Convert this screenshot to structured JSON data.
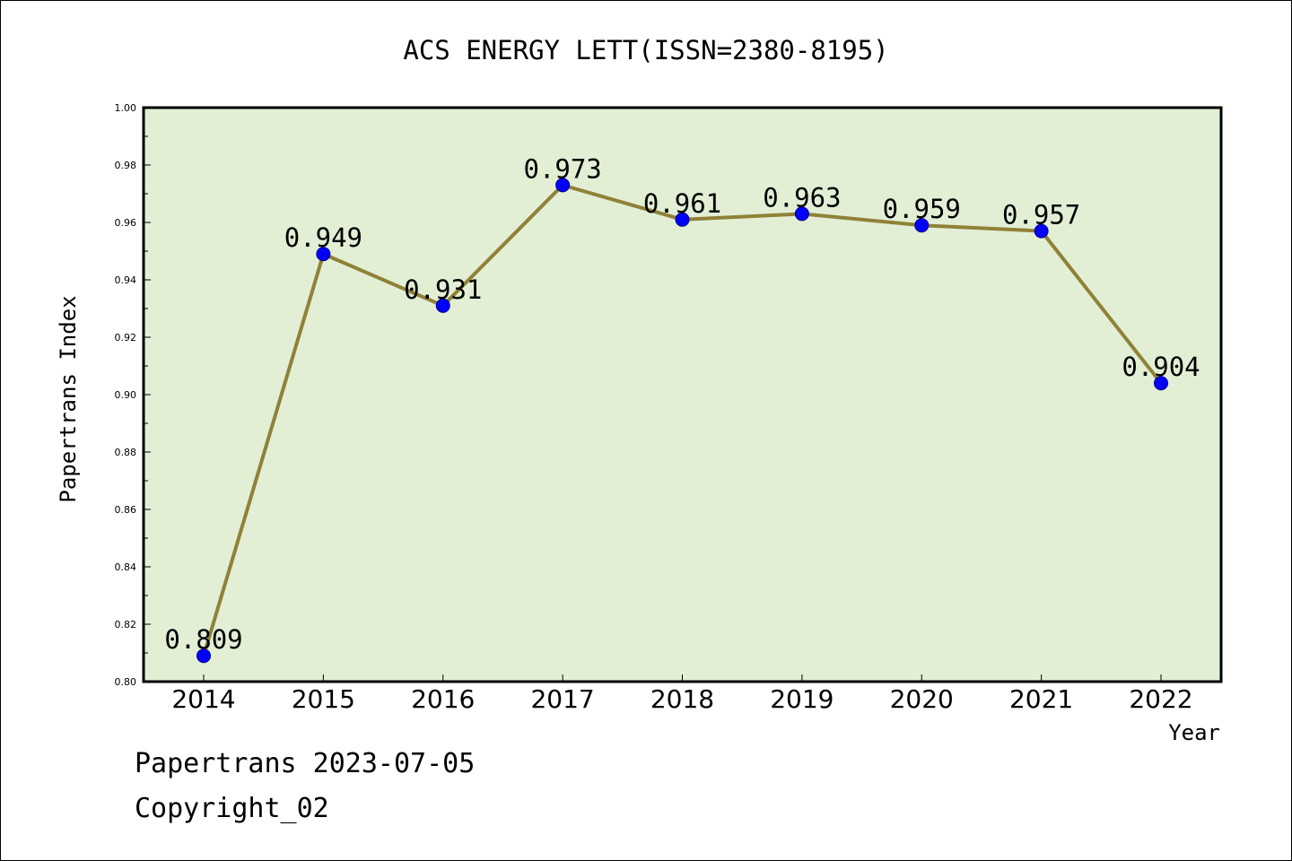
{
  "chart_data": {
    "type": "line",
    "title": "ACS ENERGY LETT(ISSN=2380-8195)",
    "xlabel": "Year",
    "ylabel": "Papertrans Index",
    "categories": [
      "2014",
      "2015",
      "2016",
      "2017",
      "2018",
      "2019",
      "2020",
      "2021",
      "2022"
    ],
    "series": [
      {
        "values": [
          0.809,
          0.949,
          0.931,
          0.973,
          0.961,
          0.963,
          0.959,
          0.957,
          0.904
        ],
        "data_labels": [
          "0.809",
          "0.949",
          "0.931",
          "0.973",
          "0.961",
          "0.963",
          "0.959",
          "0.957",
          "0.904"
        ]
      }
    ],
    "ylim": [
      0.8,
      1.0
    ],
    "yticks": [
      "0.80",
      "0.82",
      "0.84",
      "0.86",
      "0.88",
      "0.90",
      "0.92",
      "0.94",
      "0.96",
      "0.98",
      "1.00"
    ],
    "grid": false,
    "colors": {
      "plot_background": "#e2efd5",
      "line": "#8f8137",
      "marker": "#0000ff",
      "axis": "#000000"
    }
  },
  "footer": {
    "stamp": "Papertrans 2023-07-05",
    "copyright": "Copyright_02"
  }
}
